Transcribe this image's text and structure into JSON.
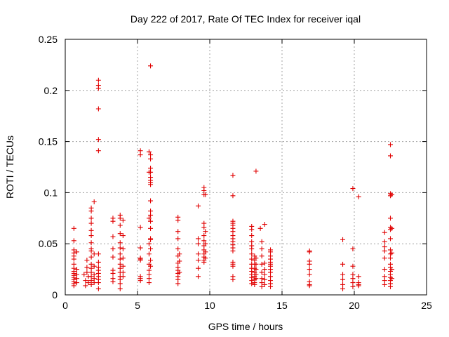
{
  "chart_data": {
    "type": "scatter",
    "title": "Day 222 of 2017, Rate Of TEC Index for receiver iqal",
    "xlabel": "GPS time / hours",
    "ylabel": "ROTI / TECUs",
    "xlim": [
      0,
      25
    ],
    "ylim": [
      0,
      0.25
    ],
    "x_ticks": [
      "0",
      "5",
      "10",
      "15",
      "20",
      "25"
    ],
    "y_ticks": [
      "0",
      "0.05",
      "0.1",
      "0.15",
      "0.2",
      "0.25"
    ],
    "grid": true,
    "marker": "plus",
    "color": "#e00000",
    "series": [
      {
        "name": "ROTI",
        "points": [
          [
            0.6,
            0.065
          ],
          [
            0.6,
            0.053
          ],
          [
            0.6,
            0.044
          ],
          [
            0.6,
            0.041
          ],
          [
            0.6,
            0.038
          ],
          [
            0.6,
            0.035
          ],
          [
            0.6,
            0.03
          ],
          [
            0.6,
            0.026
          ],
          [
            0.6,
            0.023
          ],
          [
            0.6,
            0.021
          ],
          [
            0.6,
            0.019
          ],
          [
            0.6,
            0.017
          ],
          [
            0.6,
            0.015
          ],
          [
            0.6,
            0.013
          ],
          [
            0.6,
            0.011
          ],
          [
            0.6,
            0.009
          ],
          [
            0.8,
            0.042
          ],
          [
            0.8,
            0.025
          ],
          [
            0.8,
            0.02
          ],
          [
            0.8,
            0.016
          ],
          [
            0.8,
            0.012
          ],
          [
            1.3,
            0.02
          ],
          [
            1.4,
            0.014
          ],
          [
            1.4,
            0.009
          ],
          [
            1.5,
            0.034
          ],
          [
            1.5,
            0.027
          ],
          [
            1.5,
            0.022
          ],
          [
            1.6,
            0.018
          ],
          [
            1.6,
            0.012
          ],
          [
            1.8,
            0.085
          ],
          [
            1.8,
            0.082
          ],
          [
            1.8,
            0.075
          ],
          [
            1.8,
            0.07
          ],
          [
            1.8,
            0.063
          ],
          [
            1.8,
            0.058
          ],
          [
            1.8,
            0.051
          ],
          [
            1.8,
            0.045
          ],
          [
            1.8,
            0.043
          ],
          [
            1.8,
            0.037
          ],
          [
            1.8,
            0.03
          ],
          [
            1.8,
            0.026
          ],
          [
            1.8,
            0.022
          ],
          [
            1.8,
            0.018
          ],
          [
            1.8,
            0.014
          ],
          [
            1.8,
            0.01
          ],
          [
            2.0,
            0.091
          ],
          [
            2.0,
            0.04
          ],
          [
            2.0,
            0.028
          ],
          [
            2.0,
            0.02
          ],
          [
            2.0,
            0.016
          ],
          [
            2.0,
            0.012
          ],
          [
            2.3,
            0.21
          ],
          [
            2.3,
            0.205
          ],
          [
            2.3,
            0.202
          ],
          [
            2.3,
            0.182
          ],
          [
            2.3,
            0.152
          ],
          [
            2.3,
            0.141
          ],
          [
            2.3,
            0.04
          ],
          [
            2.3,
            0.032
          ],
          [
            2.3,
            0.027
          ],
          [
            2.3,
            0.024
          ],
          [
            2.3,
            0.021
          ],
          [
            2.3,
            0.018
          ],
          [
            2.3,
            0.015
          ],
          [
            2.3,
            0.012
          ],
          [
            2.3,
            0.006
          ],
          [
            3.3,
            0.075
          ],
          [
            3.3,
            0.072
          ],
          [
            3.3,
            0.057
          ],
          [
            3.3,
            0.045
          ],
          [
            3.3,
            0.037
          ],
          [
            3.3,
            0.024
          ],
          [
            3.3,
            0.021
          ],
          [
            3.3,
            0.016
          ],
          [
            3.3,
            0.013
          ],
          [
            3.8,
            0.078
          ],
          [
            3.8,
            0.075
          ],
          [
            3.8,
            0.068
          ],
          [
            3.8,
            0.06
          ],
          [
            3.8,
            0.051
          ],
          [
            3.8,
            0.046
          ],
          [
            3.8,
            0.04
          ],
          [
            3.8,
            0.035
          ],
          [
            3.8,
            0.03
          ],
          [
            3.8,
            0.026
          ],
          [
            3.8,
            0.022
          ],
          [
            3.8,
            0.018
          ],
          [
            3.8,
            0.015
          ],
          [
            3.8,
            0.011
          ],
          [
            3.8,
            0.006
          ],
          [
            4.0,
            0.073
          ],
          [
            4.0,
            0.058
          ],
          [
            4.0,
            0.045
          ],
          [
            4.0,
            0.036
          ],
          [
            4.0,
            0.028
          ],
          [
            4.0,
            0.022
          ],
          [
            4.0,
            0.018
          ],
          [
            5.2,
            0.141
          ],
          [
            5.2,
            0.137
          ],
          [
            5.2,
            0.066
          ],
          [
            5.2,
            0.046
          ],
          [
            5.2,
            0.036
          ],
          [
            5.2,
            0.035
          ],
          [
            5.2,
            0.034
          ],
          [
            5.2,
            0.018
          ],
          [
            5.2,
            0.016
          ],
          [
            5.2,
            0.014
          ],
          [
            5.8,
            0.14
          ],
          [
            5.8,
            0.12
          ],
          [
            5.8,
            0.075
          ],
          [
            5.8,
            0.05
          ],
          [
            5.8,
            0.04
          ],
          [
            5.8,
            0.03
          ],
          [
            5.8,
            0.024
          ],
          [
            5.8,
            0.02
          ],
          [
            5.8,
            0.016
          ],
          [
            5.8,
            0.012
          ],
          [
            5.9,
            0.224
          ],
          [
            5.9,
            0.137
          ],
          [
            5.9,
            0.133
          ],
          [
            5.9,
            0.124
          ],
          [
            5.9,
            0.12
          ],
          [
            5.9,
            0.115
          ],
          [
            5.9,
            0.112
          ],
          [
            5.9,
            0.11
          ],
          [
            5.9,
            0.108
          ],
          [
            5.9,
            0.092
          ],
          [
            5.9,
            0.082
          ],
          [
            5.9,
            0.078
          ],
          [
            5.9,
            0.072
          ],
          [
            5.9,
            0.065
          ],
          [
            5.9,
            0.055
          ],
          [
            5.9,
            0.054
          ],
          [
            5.9,
            0.045
          ],
          [
            5.9,
            0.034
          ],
          [
            5.9,
            0.028
          ],
          [
            7.8,
            0.076
          ],
          [
            7.8,
            0.073
          ],
          [
            7.8,
            0.062
          ],
          [
            7.8,
            0.055
          ],
          [
            7.8,
            0.045
          ],
          [
            7.8,
            0.038
          ],
          [
            7.8,
            0.031
          ],
          [
            7.8,
            0.027
          ],
          [
            7.8,
            0.024
          ],
          [
            7.8,
            0.021
          ],
          [
            7.8,
            0.018
          ],
          [
            7.8,
            0.015
          ],
          [
            7.8,
            0.011
          ],
          [
            7.9,
            0.04
          ],
          [
            7.9,
            0.033
          ],
          [
            7.9,
            0.022
          ],
          [
            9.2,
            0.087
          ],
          [
            9.2,
            0.055
          ],
          [
            9.2,
            0.05
          ],
          [
            9.2,
            0.04
          ],
          [
            9.2,
            0.034
          ],
          [
            9.2,
            0.026
          ],
          [
            9.2,
            0.018
          ],
          [
            9.6,
            0.105
          ],
          [
            9.6,
            0.102
          ],
          [
            9.6,
            0.098
          ],
          [
            9.6,
            0.07
          ],
          [
            9.6,
            0.066
          ],
          [
            9.6,
            0.058
          ],
          [
            9.6,
            0.053
          ],
          [
            9.6,
            0.048
          ],
          [
            9.6,
            0.044
          ],
          [
            9.6,
            0.04
          ],
          [
            9.6,
            0.037
          ],
          [
            9.6,
            0.034
          ],
          [
            9.6,
            0.032
          ],
          [
            9.7,
            0.098
          ],
          [
            9.7,
            0.062
          ],
          [
            9.7,
            0.05
          ],
          [
            9.7,
            0.042
          ],
          [
            9.7,
            0.036
          ],
          [
            11.6,
            0.117
          ],
          [
            11.6,
            0.097
          ],
          [
            11.6,
            0.072
          ],
          [
            11.6,
            0.07
          ],
          [
            11.6,
            0.068
          ],
          [
            11.6,
            0.065
          ],
          [
            11.6,
            0.062
          ],
          [
            11.6,
            0.058
          ],
          [
            11.6,
            0.055
          ],
          [
            11.6,
            0.052
          ],
          [
            11.6,
            0.049
          ],
          [
            11.6,
            0.046
          ],
          [
            11.6,
            0.043
          ],
          [
            11.6,
            0.032
          ],
          [
            11.6,
            0.03
          ],
          [
            11.6,
            0.028
          ],
          [
            11.6,
            0.018
          ],
          [
            11.6,
            0.015
          ],
          [
            12.9,
            0.067
          ],
          [
            12.9,
            0.064
          ],
          [
            12.9,
            0.058
          ],
          [
            12.9,
            0.052
          ],
          [
            12.9,
            0.048
          ],
          [
            12.9,
            0.045
          ],
          [
            12.9,
            0.04
          ],
          [
            12.9,
            0.035
          ],
          [
            12.9,
            0.03
          ],
          [
            12.9,
            0.026
          ],
          [
            12.9,
            0.023
          ],
          [
            12.9,
            0.02
          ],
          [
            12.9,
            0.017
          ],
          [
            12.9,
            0.014
          ],
          [
            12.9,
            0.011
          ],
          [
            13.1,
            0.038
          ],
          [
            13.1,
            0.034
          ],
          [
            13.1,
            0.03
          ],
          [
            13.1,
            0.026
          ],
          [
            13.1,
            0.022
          ],
          [
            13.1,
            0.018
          ],
          [
            13.1,
            0.015
          ],
          [
            13.1,
            0.012
          ],
          [
            13.1,
            0.01
          ],
          [
            13.2,
            0.121
          ],
          [
            13.2,
            0.036
          ],
          [
            13.2,
            0.03
          ],
          [
            13.2,
            0.025
          ],
          [
            13.2,
            0.02
          ],
          [
            13.2,
            0.016
          ],
          [
            13.5,
            0.065
          ],
          [
            13.6,
            0.052
          ],
          [
            13.6,
            0.045
          ],
          [
            13.6,
            0.038
          ],
          [
            13.6,
            0.03
          ],
          [
            13.6,
            0.022
          ],
          [
            13.6,
            0.016
          ],
          [
            13.6,
            0.012
          ],
          [
            13.6,
            0.008
          ],
          [
            13.8,
            0.069
          ],
          [
            13.8,
            0.031
          ],
          [
            13.8,
            0.025
          ],
          [
            13.8,
            0.02
          ],
          [
            13.8,
            0.015
          ],
          [
            13.8,
            0.01
          ],
          [
            14.2,
            0.044
          ],
          [
            14.2,
            0.042
          ],
          [
            14.2,
            0.038
          ],
          [
            14.2,
            0.035
          ],
          [
            14.2,
            0.032
          ],
          [
            14.2,
            0.03
          ],
          [
            14.2,
            0.028
          ],
          [
            14.2,
            0.025
          ],
          [
            14.2,
            0.022
          ],
          [
            14.2,
            0.018
          ],
          [
            14.2,
            0.014
          ],
          [
            14.2,
            0.011
          ],
          [
            14.2,
            0.008
          ],
          [
            16.9,
            0.043
          ],
          [
            16.9,
            0.042
          ],
          [
            16.9,
            0.033
          ],
          [
            16.9,
            0.03
          ],
          [
            16.9,
            0.025
          ],
          [
            16.9,
            0.02
          ],
          [
            16.9,
            0.013
          ],
          [
            16.9,
            0.01
          ],
          [
            16.9,
            0.009
          ],
          [
            19.2,
            0.054
          ],
          [
            19.2,
            0.03
          ],
          [
            19.2,
            0.02
          ],
          [
            19.2,
            0.015
          ],
          [
            19.2,
            0.01
          ],
          [
            19.2,
            0.006
          ],
          [
            19.9,
            0.104
          ],
          [
            19.9,
            0.045
          ],
          [
            19.9,
            0.028
          ],
          [
            19.9,
            0.02
          ],
          [
            19.9,
            0.016
          ],
          [
            19.9,
            0.012
          ],
          [
            19.9,
            0.008
          ],
          [
            20.3,
            0.096
          ],
          [
            20.3,
            0.018
          ],
          [
            20.3,
            0.012
          ],
          [
            20.3,
            0.01
          ],
          [
            20.3,
            0.009
          ],
          [
            22.1,
            0.061
          ],
          [
            22.1,
            0.052
          ],
          [
            22.1,
            0.047
          ],
          [
            22.1,
            0.043
          ],
          [
            22.1,
            0.036
          ],
          [
            22.1,
            0.025
          ],
          [
            22.1,
            0.018
          ],
          [
            22.1,
            0.014
          ],
          [
            22.1,
            0.01
          ],
          [
            22.5,
            0.147
          ],
          [
            22.5,
            0.136
          ],
          [
            22.5,
            0.099
          ],
          [
            22.5,
            0.097
          ],
          [
            22.5,
            0.075
          ],
          [
            22.5,
            0.066
          ],
          [
            22.5,
            0.064
          ],
          [
            22.5,
            0.055
          ],
          [
            22.5,
            0.044
          ],
          [
            22.5,
            0.04
          ],
          [
            22.5,
            0.036
          ],
          [
            22.5,
            0.03
          ],
          [
            22.5,
            0.027
          ],
          [
            22.5,
            0.023
          ],
          [
            22.5,
            0.02
          ],
          [
            22.5,
            0.017
          ],
          [
            22.5,
            0.014
          ],
          [
            22.5,
            0.011
          ],
          [
            22.5,
            0.008
          ],
          [
            22.6,
            0.098
          ],
          [
            22.6,
            0.065
          ],
          [
            22.6,
            0.041
          ],
          [
            22.6,
            0.025
          ],
          [
            22.6,
            0.016
          ]
        ]
      }
    ]
  }
}
